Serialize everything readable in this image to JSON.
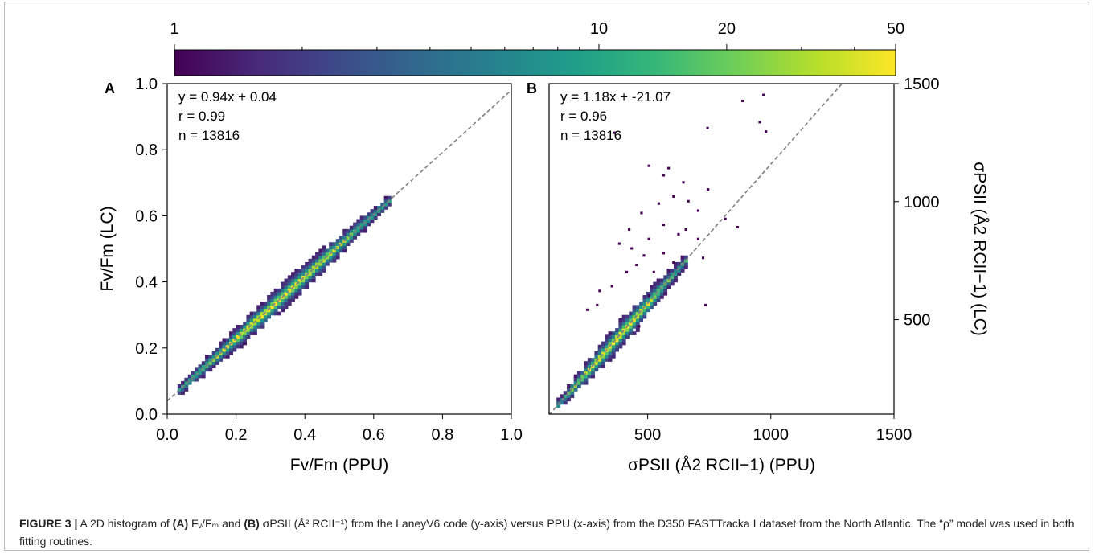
{
  "colorbar": {
    "ticks": [
      "1",
      "10",
      "20",
      "50"
    ],
    "tick_values": [
      1,
      10,
      20,
      50
    ],
    "range": [
      1,
      50
    ],
    "scale": "log",
    "colormap": [
      "#440154",
      "#482878",
      "#3e4989",
      "#31688e",
      "#26828e",
      "#1f9e89",
      "#35b779",
      "#6ece58",
      "#b5de2b",
      "#fde725"
    ]
  },
  "chart_data": [
    {
      "type": "heatmap",
      "panel": "A",
      "xlabel": "Fv/Fm (PPU)",
      "ylabel": "Fv/Fm (LC)",
      "xlim": [
        0.0,
        1.0
      ],
      "ylim": [
        0.0,
        1.0
      ],
      "xticks": [
        "0.0",
        "0.2",
        "0.4",
        "0.6",
        "0.8",
        "1.0"
      ],
      "yticks": [
        "0.0",
        "0.2",
        "0.4",
        "0.6",
        "0.8",
        "1.0"
      ],
      "annotation": [
        "y = 0.94x + 0.04",
        "r = 0.99",
        "n = 13816"
      ],
      "fit": {
        "slope": 0.94,
        "intercept": 0.04,
        "r": 0.99,
        "n": 13816
      },
      "data_range": [
        0.03,
        0.65
      ],
      "bin_size": 0.01,
      "spread": 0.03
    },
    {
      "type": "heatmap",
      "panel": "B",
      "xlabel": "σPSII (Å2 RCII−1) (PPU)",
      "ylabel": "σPSII (Å2 RCII−1) (LC)",
      "xlim": [
        100,
        1500
      ],
      "ylim": [
        100,
        1500
      ],
      "xticks": [
        "500",
        "1000",
        "1500"
      ],
      "yticks": [
        "500",
        "1000",
        "1500"
      ],
      "annotation": [
        "y = 1.18x + -21.07",
        "r = 0.96",
        "n = 13816"
      ],
      "fit": {
        "slope": 1.18,
        "intercept": -21.07,
        "r": 0.96,
        "n": 13816
      },
      "data_range": [
        130,
        660
      ],
      "bin_size": 14,
      "spread": 45,
      "outliers": [
        [
          965,
          1450
        ],
        [
          880,
          1425
        ],
        [
          738,
          1310
        ],
        [
          950,
          1335
        ],
        [
          975,
          1295
        ],
        [
          360,
          1290
        ],
        [
          500,
          1150
        ],
        [
          580,
          1140
        ],
        [
          640,
          1080
        ],
        [
          740,
          1050
        ],
        [
          600,
          1020
        ],
        [
          540,
          990
        ],
        [
          700,
          960
        ],
        [
          470,
          950
        ],
        [
          660,
          1000
        ],
        [
          560,
          900
        ],
        [
          620,
          860
        ],
        [
          500,
          840
        ],
        [
          700,
          840
        ],
        [
          430,
          800
        ],
        [
          480,
          770
        ],
        [
          380,
          820
        ],
        [
          560,
          780
        ],
        [
          650,
          880
        ],
        [
          720,
          760
        ],
        [
          450,
          730
        ],
        [
          600,
          740
        ],
        [
          350,
          640
        ],
        [
          410,
          700
        ],
        [
          520,
          700
        ],
        [
          300,
          620
        ],
        [
          290,
          560
        ],
        [
          250,
          540
        ],
        [
          460,
          470
        ],
        [
          500,
          600
        ],
        [
          730,
          560
        ],
        [
          810,
          925
        ],
        [
          860,
          890
        ],
        [
          420,
          880
        ],
        [
          560,
          1110
        ]
      ]
    }
  ],
  "caption": {
    "lead": "FIGURE 3 |",
    "p1": " A 2D histogram of ",
    "a": "(A)",
    "p2": " Fᵥ/Fₘ and ",
    "b": "(B)",
    "p3": " σPSII (Å² RCII⁻¹) from the LaneyV6 code (y-axis) versus PPU (x-axis) from the D350 FASTTracka I dataset from the North Atlantic. The “ρ” model was used in both fitting routines."
  }
}
